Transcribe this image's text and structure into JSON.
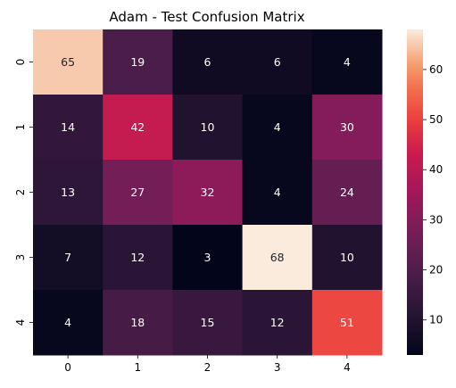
{
  "chart_data": {
    "type": "heatmap",
    "title": "Adam - Test Confusion Matrix",
    "xlabel": "",
    "ylabel": "",
    "x_tick_labels": [
      "0",
      "1",
      "2",
      "3",
      "4"
    ],
    "y_tick_labels": [
      "0",
      "1",
      "2",
      "3",
      "4"
    ],
    "matrix": [
      [
        65,
        19,
        6,
        6,
        4
      ],
      [
        14,
        42,
        10,
        4,
        30
      ],
      [
        13,
        27,
        32,
        4,
        24
      ],
      [
        7,
        12,
        3,
        68,
        10
      ],
      [
        4,
        18,
        15,
        12,
        51
      ]
    ],
    "annotated": true,
    "colormap": "rocket",
    "color_range": [
      3,
      68
    ],
    "colorbar_ticks": [
      10,
      20,
      30,
      40,
      50,
      60
    ],
    "colorbar_position": "right",
    "grid": false
  }
}
